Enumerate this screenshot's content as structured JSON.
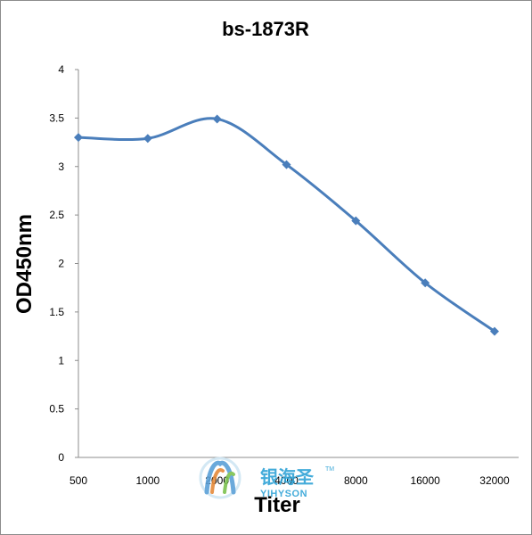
{
  "chart_data": {
    "type": "line",
    "title": "bs-1873R",
    "xlabel": "Titer",
    "ylabel": "OD450nm",
    "categories": [
      "500",
      "1000",
      "2000",
      "4000",
      "8000",
      "16000",
      "32000"
    ],
    "series": [
      {
        "values": [
          3.3,
          3.29,
          3.49,
          3.02,
          2.44,
          1.8,
          1.3
        ]
      }
    ],
    "ylim": [
      0,
      4
    ],
    "yticks": [
      "0",
      "0.5",
      "1",
      "1.5",
      "2",
      "2.5",
      "3",
      "3.5",
      "4"
    ],
    "grid": false,
    "legend": "none",
    "line_color": "#4a7ebb"
  },
  "watermark": {
    "chinese": "银海圣",
    "english": "YIHYSON",
    "tm": "TM"
  }
}
